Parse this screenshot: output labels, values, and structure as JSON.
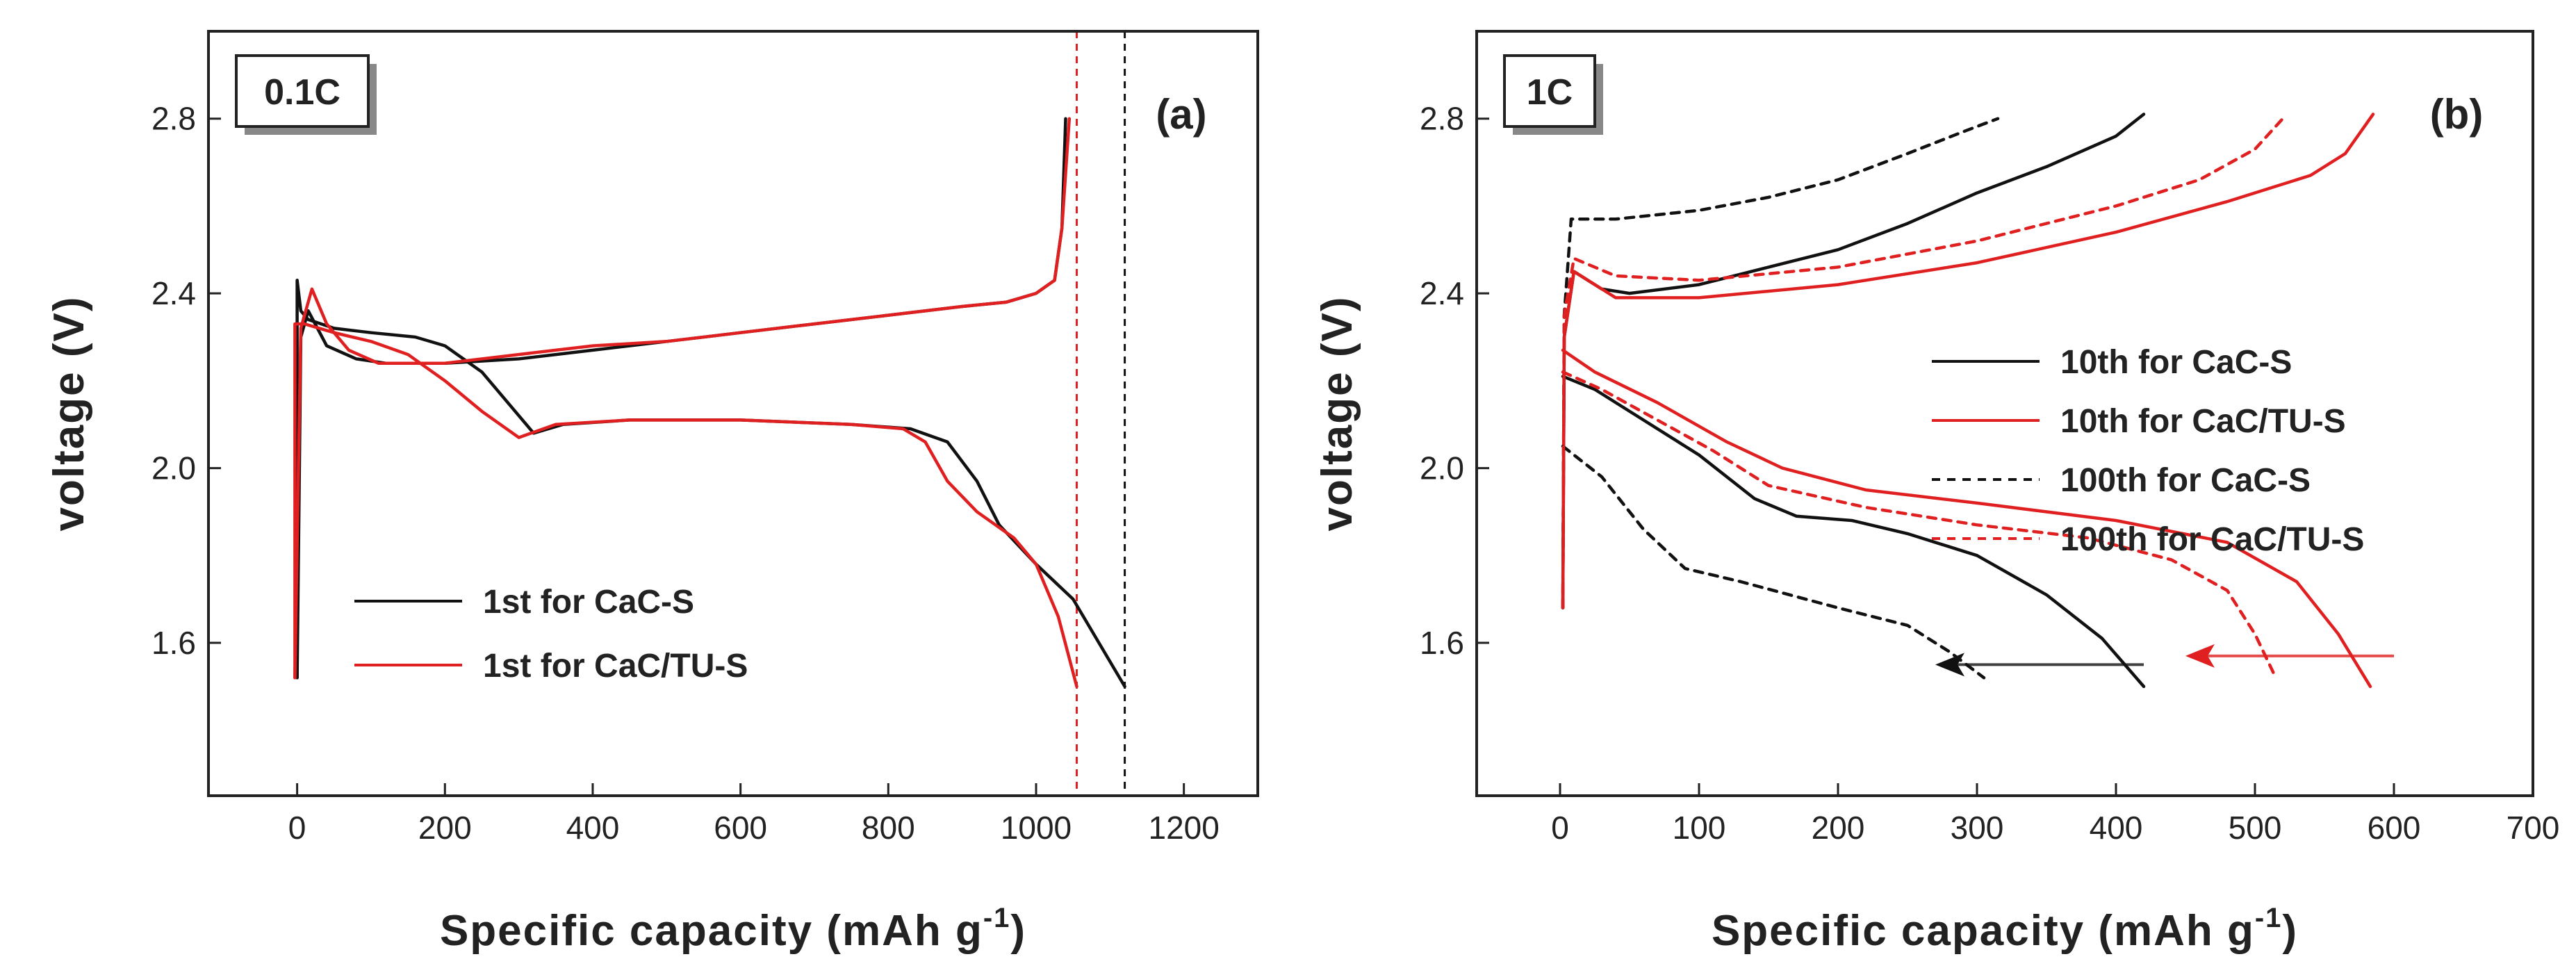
{
  "chart_data": [
    {
      "type": "line",
      "panel_label": "(a)",
      "rate_label": "0.1C",
      "xlabel": "Specific capacity (mAh g",
      "xlabel_sup": "-1",
      "xlabel_end": ")",
      "ylabel": "voltage (V)",
      "xlim": [
        -120,
        1300
      ],
      "ylim": [
        1.25,
        3.0
      ],
      "xticks": [
        0,
        200,
        400,
        600,
        800,
        1000,
        1200
      ],
      "xtick_labels": [
        "0",
        "200",
        "400",
        "600",
        "800",
        "1000",
        "1200"
      ],
      "yticks": [
        1.6,
        2.0,
        2.4,
        2.8
      ],
      "ytick_labels": [
        "1.6",
        "2.0",
        "2.4",
        "2.8"
      ],
      "legend": [
        "1st for CaC-S",
        "1st for CaC/TU-S"
      ],
      "vlines": [
        {
          "x": 1055,
          "color": "#e02020",
          "style": "dashed"
        },
        {
          "x": 1120,
          "color": "#111111",
          "style": "dashed"
        }
      ],
      "series": [
        {
          "name": "1st for CaC-S",
          "color": "#111111",
          "dash": "solid",
          "segments": [
            [
              [
                0,
                1.52
              ],
              [
                0,
                2.43
              ],
              [
                5,
                2.36
              ],
              [
                15,
                2.34
              ],
              [
                50,
                2.32
              ],
              [
                100,
                2.31
              ],
              [
                160,
                2.3
              ],
              [
                200,
                2.28
              ],
              [
                250,
                2.22
              ],
              [
                290,
                2.14
              ],
              [
                320,
                2.08
              ],
              [
                360,
                2.1
              ],
              [
                450,
                2.11
              ],
              [
                600,
                2.11
              ],
              [
                750,
                2.1
              ],
              [
                830,
                2.09
              ],
              [
                880,
                2.06
              ],
              [
                920,
                1.97
              ],
              [
                950,
                1.87
              ],
              [
                1000,
                1.78
              ],
              [
                1050,
                1.7
              ],
              [
                1085,
                1.6
              ],
              [
                1120,
                1.5
              ]
            ],
            [
              [
                0,
                1.52
              ],
              [
                5,
                2.3
              ],
              [
                15,
                2.36
              ],
              [
                40,
                2.28
              ],
              [
                80,
                2.25
              ],
              [
                120,
                2.24
              ],
              [
                200,
                2.24
              ],
              [
                300,
                2.25
              ],
              [
                400,
                2.27
              ],
              [
                500,
                2.29
              ],
              [
                600,
                2.31
              ],
              [
                700,
                2.33
              ],
              [
                800,
                2.35
              ],
              [
                900,
                2.37
              ],
              [
                960,
                2.38
              ],
              [
                1000,
                2.4
              ],
              [
                1025,
                2.43
              ],
              [
                1035,
                2.55
              ],
              [
                1040,
                2.8
              ]
            ]
          ]
        },
        {
          "name": "1st for CaC/TU-S",
          "color": "#e02020",
          "dash": "solid",
          "segments": [
            [
              [
                -3,
                1.52
              ],
              [
                -3,
                2.33
              ],
              [
                10,
                2.33
              ],
              [
                50,
                2.31
              ],
              [
                100,
                2.29
              ],
              [
                150,
                2.26
              ],
              [
                200,
                2.2
              ],
              [
                250,
                2.13
              ],
              [
                300,
                2.07
              ],
              [
                350,
                2.1
              ],
              [
                450,
                2.11
              ],
              [
                600,
                2.11
              ],
              [
                750,
                2.1
              ],
              [
                820,
                2.09
              ],
              [
                850,
                2.06
              ],
              [
                880,
                1.97
              ],
              [
                920,
                1.9
              ],
              [
                970,
                1.84
              ],
              [
                1000,
                1.78
              ],
              [
                1030,
                1.66
              ],
              [
                1055,
                1.5
              ]
            ],
            [
              [
                -3,
                1.52
              ],
              [
                5,
                2.32
              ],
              [
                20,
                2.41
              ],
              [
                40,
                2.33
              ],
              [
                70,
                2.27
              ],
              [
                110,
                2.24
              ],
              [
                200,
                2.24
              ],
              [
                300,
                2.26
              ],
              [
                400,
                2.28
              ],
              [
                500,
                2.29
              ],
              [
                600,
                2.31
              ],
              [
                700,
                2.33
              ],
              [
                800,
                2.35
              ],
              [
                900,
                2.37
              ],
              [
                960,
                2.38
              ],
              [
                1000,
                2.4
              ],
              [
                1025,
                2.43
              ],
              [
                1035,
                2.55
              ],
              [
                1045,
                2.8
              ]
            ]
          ]
        }
      ]
    },
    {
      "type": "line",
      "panel_label": "(b)",
      "rate_label": "1C",
      "xlabel": "Specific capacity (mAh g",
      "xlabel_sup": "-1",
      "xlabel_end": ")",
      "ylabel": "voltage (V)",
      "xlim": [
        -60,
        700
      ],
      "ylim": [
        1.25,
        3.0
      ],
      "xticks": [
        0,
        100,
        200,
        300,
        400,
        500,
        600,
        700
      ],
      "xtick_labels": [
        "0",
        "100",
        "200",
        "300",
        "400",
        "500",
        "600",
        "700"
      ],
      "yticks": [
        1.6,
        2.0,
        2.4,
        2.8
      ],
      "ytick_labels": [
        "1.6",
        "2.0",
        "2.4",
        "2.8"
      ],
      "legend": [
        "10th for CaC-S",
        "10th for CaC/TU-S",
        "100th for CaC-S",
        "100th for CaC/TU-S"
      ],
      "arrows": [
        {
          "x_from": 420,
          "x_to": 270,
          "y": 1.55,
          "color": "#111111"
        },
        {
          "x_from": 600,
          "x_to": 450,
          "y": 1.57,
          "color": "#e02020"
        }
      ],
      "series": [
        {
          "name": "10th for CaC-S",
          "color": "#111111",
          "dash": "solid",
          "segments": [
            [
              [
                2,
                2.21
              ],
              [
                25,
                2.18
              ],
              [
                60,
                2.11
              ],
              [
                100,
                2.03
              ],
              [
                140,
                1.93
              ],
              [
                170,
                1.89
              ],
              [
                210,
                1.88
              ],
              [
                250,
                1.85
              ],
              [
                300,
                1.8
              ],
              [
                350,
                1.71
              ],
              [
                390,
                1.61
              ],
              [
                420,
                1.5
              ]
            ],
            [
              [
                2,
                1.68
              ],
              [
                3,
                2.3
              ],
              [
                10,
                2.45
              ],
              [
                30,
                2.41
              ],
              [
                50,
                2.4
              ],
              [
                100,
                2.42
              ],
              [
                150,
                2.46
              ],
              [
                200,
                2.5
              ],
              [
                250,
                2.56
              ],
              [
                300,
                2.63
              ],
              [
                350,
                2.69
              ],
              [
                400,
                2.76
              ],
              [
                420,
                2.81
              ]
            ]
          ]
        },
        {
          "name": "10th for CaC/TU-S",
          "color": "#e02020",
          "dash": "solid",
          "segments": [
            [
              [
                2,
                2.27
              ],
              [
                25,
                2.22
              ],
              [
                70,
                2.15
              ],
              [
                120,
                2.06
              ],
              [
                160,
                2.0
              ],
              [
                220,
                1.95
              ],
              [
                300,
                1.92
              ],
              [
                400,
                1.88
              ],
              [
                480,
                1.83
              ],
              [
                530,
                1.74
              ],
              [
                560,
                1.62
              ],
              [
                583,
                1.5
              ]
            ],
            [
              [
                2,
                1.68
              ],
              [
                3,
                2.3
              ],
              [
                10,
                2.45
              ],
              [
                40,
                2.39
              ],
              [
                100,
                2.39
              ],
              [
                200,
                2.42
              ],
              [
                300,
                2.47
              ],
              [
                400,
                2.54
              ],
              [
                480,
                2.61
              ],
              [
                540,
                2.67
              ],
              [
                565,
                2.72
              ],
              [
                585,
                2.81
              ]
            ]
          ]
        },
        {
          "name": "100th for CaC-S",
          "color": "#111111",
          "dash": "dashed",
          "segments": [
            [
              [
                2,
                2.05
              ],
              [
                30,
                1.98
              ],
              [
                60,
                1.86
              ],
              [
                90,
                1.77
              ],
              [
                130,
                1.74
              ],
              [
                200,
                1.68
              ],
              [
                250,
                1.64
              ],
              [
                280,
                1.58
              ],
              [
                305,
                1.52
              ]
            ],
            [
              [
                2,
                1.68
              ],
              [
                3,
                2.35
              ],
              [
                8,
                2.57
              ],
              [
                40,
                2.57
              ],
              [
                100,
                2.59
              ],
              [
                150,
                2.62
              ],
              [
                200,
                2.66
              ],
              [
                250,
                2.72
              ],
              [
                290,
                2.77
              ],
              [
                315,
                2.8
              ]
            ]
          ]
        },
        {
          "name": "100th for CaC/TU-S",
          "color": "#e02020",
          "dash": "dashed",
          "segments": [
            [
              [
                2,
                2.22
              ],
              [
                30,
                2.18
              ],
              [
                70,
                2.11
              ],
              [
                110,
                2.04
              ],
              [
                150,
                1.96
              ],
              [
                220,
                1.91
              ],
              [
                300,
                1.87
              ],
              [
                380,
                1.84
              ],
              [
                440,
                1.79
              ],
              [
                480,
                1.72
              ],
              [
                500,
                1.62
              ],
              [
                515,
                1.52
              ]
            ],
            [
              [
                2,
                1.68
              ],
              [
                3,
                2.35
              ],
              [
                10,
                2.48
              ],
              [
                40,
                2.44
              ],
              [
                100,
                2.43
              ],
              [
                200,
                2.46
              ],
              [
                300,
                2.52
              ],
              [
                400,
                2.6
              ],
              [
                460,
                2.66
              ],
              [
                500,
                2.73
              ],
              [
                520,
                2.8
              ]
            ]
          ]
        }
      ]
    }
  ]
}
